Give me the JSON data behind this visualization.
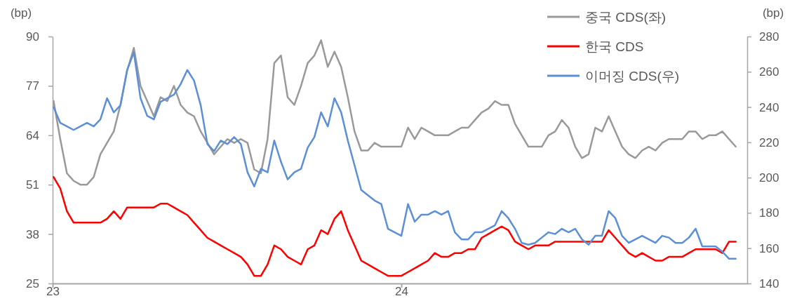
{
  "chart_data": {
    "type": "line",
    "ylabel": "(bp)",
    "y2label": "(bp)",
    "x": [
      "2023-01-02",
      "2023-01-09",
      "2023-01-16",
      "2023-01-23",
      "2023-01-30",
      "2023-02-06",
      "2023-02-13",
      "2023-02-20",
      "2023-02-27",
      "2023-03-06",
      "2023-03-13",
      "2023-03-20",
      "2023-03-27",
      "2023-04-03",
      "2023-04-10",
      "2023-04-17",
      "2023-04-24",
      "2023-05-01",
      "2023-05-08",
      "2023-05-15",
      "2023-05-22",
      "2023-05-29",
      "2023-06-05",
      "2023-06-12",
      "2023-06-19",
      "2023-06-26",
      "2023-07-03",
      "2023-07-10",
      "2023-07-17",
      "2023-07-24",
      "2023-07-31",
      "2023-08-07",
      "2023-08-14",
      "2023-08-21",
      "2023-08-28",
      "2023-09-04",
      "2023-09-11",
      "2023-09-18",
      "2023-09-25",
      "2023-10-02",
      "2023-10-09",
      "2023-10-16",
      "2023-10-23",
      "2023-10-30",
      "2023-11-06",
      "2023-11-13",
      "2023-11-20",
      "2023-11-27",
      "2023-12-04",
      "2023-12-11",
      "2023-12-18",
      "2023-12-25",
      "2024-01-01",
      "2024-01-08",
      "2024-01-15",
      "2024-01-22",
      "2024-01-29",
      "2024-02-05",
      "2024-02-12",
      "2024-02-19",
      "2024-02-26",
      "2024-03-04",
      "2024-03-11",
      "2024-03-18",
      "2024-03-25",
      "2024-04-01",
      "2024-04-08",
      "2024-04-15",
      "2024-04-22",
      "2024-04-29",
      "2024-05-06",
      "2024-05-13",
      "2024-05-20",
      "2024-05-27",
      "2024-06-03",
      "2024-06-10",
      "2024-06-17",
      "2024-06-24",
      "2024-07-01",
      "2024-07-08",
      "2024-07-15",
      "2024-07-22",
      "2024-07-29",
      "2024-08-05",
      "2024-08-12",
      "2024-08-19",
      "2024-08-26",
      "2024-09-02",
      "2024-09-09",
      "2024-09-16",
      "2024-09-23",
      "2024-09-30",
      "2024-10-07",
      "2024-10-14",
      "2024-10-21",
      "2024-10-28",
      "2024-11-04",
      "2024-11-11",
      "2024-11-18",
      "2024-11-25",
      "2024-12-02",
      "2024-12-09",
      "2024-12-16"
    ],
    "xlim": [
      "2023-01-01",
      "2024-12-28"
    ],
    "xticks": [
      {
        "value": "2023-01-01",
        "label": "23"
      },
      {
        "value": "2024-01-01",
        "label": "24"
      }
    ],
    "ylim": [
      25,
      90
    ],
    "yticks": [
      25,
      38,
      51,
      64,
      77,
      90
    ],
    "y2lim": [
      140,
      280
    ],
    "y2ticks": [
      140,
      160,
      180,
      200,
      220,
      240,
      260,
      280
    ],
    "legend": "top right",
    "grid": false,
    "marker": "none",
    "line_style": "solid",
    "series": [
      {
        "name": "중국 CDS(좌)",
        "color": "#999999",
        "values": [
          73,
          63,
          54,
          52,
          51,
          51,
          53,
          59,
          62,
          65,
          72,
          81,
          87,
          77,
          73,
          69,
          74,
          73,
          77,
          72,
          70,
          69,
          65,
          62,
          59,
          61,
          63,
          62,
          63,
          62,
          55,
          54,
          63,
          83,
          85,
          74,
          72,
          77,
          83,
          85,
          89,
          82,
          86,
          82,
          74,
          65,
          60,
          60,
          62,
          61,
          61,
          61,
          61,
          66,
          63,
          66,
          65,
          64,
          64,
          64,
          65,
          66,
          66,
          68,
          70,
          71,
          73,
          72,
          72,
          67,
          64,
          61,
          61,
          61,
          64,
          65,
          68,
          66,
          61,
          58,
          59,
          66,
          65,
          69,
          65,
          61,
          59,
          58,
          60,
          61,
          60,
          62,
          63,
          63,
          63,
          65,
          65,
          63,
          64,
          64,
          65,
          63,
          61
        ]
      },
      {
        "name": "한국 CDS",
        "color": "#ff0000",
        "values": [
          53,
          50,
          44,
          41,
          41,
          41,
          41,
          41,
          42,
          44,
          42,
          45,
          45,
          45,
          45,
          45,
          46,
          46,
          45,
          44,
          43,
          41,
          39,
          37,
          36,
          35,
          34,
          33,
          32,
          30,
          27,
          27,
          30,
          35,
          34,
          32,
          31,
          30,
          34,
          35,
          39,
          38,
          42,
          44,
          39,
          35,
          31,
          30,
          29,
          28,
          27,
          27,
          27,
          28,
          29,
          30,
          31,
          33,
          32,
          32,
          33,
          33,
          34,
          34,
          37,
          38,
          39,
          40,
          39,
          36,
          35,
          34,
          35,
          35,
          35,
          36,
          36,
          36,
          36,
          36,
          36,
          36,
          36,
          39,
          37,
          35,
          33,
          32,
          33,
          32,
          31,
          31,
          32,
          32,
          32,
          33,
          34,
          34,
          34,
          34,
          33,
          36,
          36
        ]
      },
      {
        "name": "이머징 CDS(우)",
        "color": "#5b8fd6",
        "axis": "y2",
        "values": [
          240,
          231,
          229,
          227,
          229,
          231,
          229,
          233,
          245,
          237,
          241,
          261,
          271,
          245,
          235,
          233,
          243,
          245,
          247,
          253,
          261,
          255,
          241,
          219,
          215,
          221,
          219,
          223,
          219,
          203,
          195,
          205,
          203,
          221,
          209,
          199,
          203,
          205,
          217,
          223,
          237,
          229,
          245,
          237,
          221,
          207,
          193,
          190,
          187,
          185,
          171,
          169,
          167,
          185,
          175,
          179,
          179,
          181,
          179,
          181,
          169,
          165,
          165,
          169,
          169,
          171,
          173,
          181,
          177,
          171,
          163,
          162,
          163,
          166,
          169,
          168,
          171,
          169,
          171,
          165,
          162,
          167,
          167,
          181,
          177,
          167,
          163,
          165,
          167,
          165,
          163,
          167,
          166,
          163,
          163,
          166,
          171,
          161,
          161,
          161,
          158,
          154,
          154
        ]
      }
    ]
  }
}
